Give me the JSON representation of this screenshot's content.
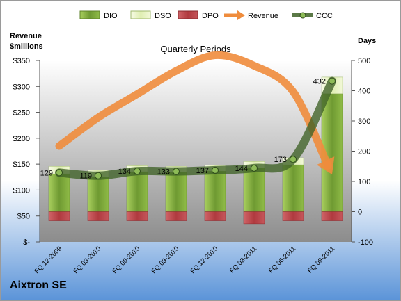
{
  "chart_data": {
    "type": "bar",
    "title": "Quarterly Periods",
    "company": "Aixtron SE",
    "ylabel_left": "Revenue\n$millions",
    "ylabel_right": "Days",
    "categories": [
      "FQ 12-2009",
      "FQ 03-2010",
      "FQ 06-2010",
      "FQ 09-2010",
      "FQ 12-2010",
      "FQ 03-2011",
      "FQ 06-2011",
      "FQ 09-2011"
    ],
    "left_axis": {
      "min": 0,
      "max": 350,
      "ticks": [
        0,
        50,
        100,
        150,
        200,
        250,
        300,
        350
      ],
      "tick_labels": [
        "$-",
        "$50",
        "$100",
        "$150",
        "$200",
        "$250",
        "$300",
        "$350"
      ]
    },
    "right_axis": {
      "min": -100,
      "max": 500,
      "ticks": [
        -100,
        0,
        100,
        200,
        300,
        400,
        500
      ],
      "tick_labels": [
        "-100",
        "0",
        "100",
        "200",
        "300",
        "400",
        "500"
      ]
    },
    "legend": {
      "position": "top",
      "items": [
        {
          "name": "DIO",
          "kind": "bar"
        },
        {
          "name": "DSO",
          "kind": "bar"
        },
        {
          "name": "DPO",
          "kind": "bar"
        },
        {
          "name": "Revenue",
          "kind": "arrow"
        },
        {
          "name": "CCC",
          "kind": "line"
        }
      ]
    },
    "series": [
      {
        "name": "DIO",
        "axis": "right",
        "values": [
          125,
          115,
          132,
          130,
          134,
          145,
          155,
          390
        ]
      },
      {
        "name": "DSO",
        "axis": "right",
        "values": [
          25,
          22,
          20,
          20,
          20,
          21,
          23,
          55
        ]
      },
      {
        "name": "DPO",
        "axis": "right",
        "values": [
          -30,
          -30,
          -30,
          -30,
          -30,
          -40,
          -30,
          -30
        ]
      },
      {
        "name": "Revenue",
        "axis": "left",
        "values": [
          185,
          240,
          285,
          330,
          360,
          340,
          290,
          130
        ]
      },
      {
        "name": "CCC",
        "axis": "right",
        "values": [
          129,
          119,
          134,
          133,
          137,
          144,
          173,
          432
        ]
      }
    ],
    "ccc_labels": [
      "129",
      "119",
      "134",
      "133",
      "137",
      "144",
      "173",
      "432"
    ],
    "colors": {
      "dio": "#6f9a32",
      "dio_light": "#a9cf5e",
      "dso": "#eef6cf",
      "dpo": "#b03a3f",
      "revenue": "#ef8c3c",
      "ccc": "#3f6227",
      "plot_top": "#ffffff",
      "plot_bottom": "#8c8c8c",
      "page_top": "#ffffff",
      "page_bottom": "#5a93d8"
    }
  }
}
